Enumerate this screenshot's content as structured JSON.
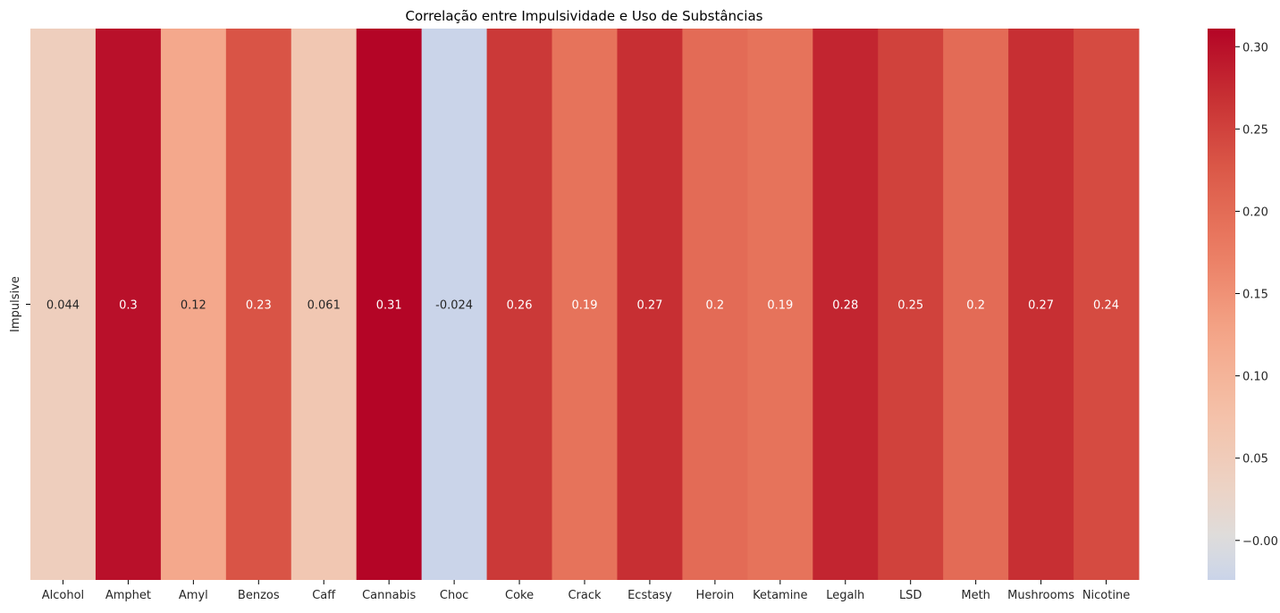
{
  "chart_data": {
    "type": "heatmap",
    "title": "Correlação entre Impulsividade e Uso de Substâncias",
    "xlabel": "",
    "ylabel": "",
    "rows": [
      "Impulsive"
    ],
    "columns": [
      "Alcohol",
      "Amphet",
      "Amyl",
      "Benzos",
      "Caff",
      "Cannabis",
      "Choc",
      "Coke",
      "Crack",
      "Ecstasy",
      "Heroin",
      "Ketamine",
      "Legalh",
      "LSD",
      "Meth",
      "Mushrooms",
      "Nicotine"
    ],
    "values": [
      [
        0.044,
        0.3,
        0.12,
        0.23,
        0.061,
        0.31,
        -0.024,
        0.26,
        0.19,
        0.27,
        0.2,
        0.19,
        0.28,
        0.25,
        0.2,
        0.27,
        0.24
      ]
    ],
    "annotations": [
      [
        "0.044",
        "0.3",
        "0.12",
        "0.23",
        "0.061",
        "0.31",
        "-0.024",
        "0.26",
        "0.19",
        "0.27",
        "0.2",
        "0.19",
        "0.28",
        "0.25",
        "0.2",
        "0.27",
        "0.24"
      ]
    ],
    "colormap": "coolwarm",
    "center": 0,
    "vmin": -0.024,
    "vmax": 0.311,
    "colorbar": {
      "ticks": [
        -0.0,
        0.05,
        0.1,
        0.15,
        0.2,
        0.25,
        0.3
      ],
      "tick_labels": [
        "−0.00",
        "0.05",
        "0.10",
        "0.15",
        "0.20",
        "0.25",
        "0.30"
      ]
    },
    "grid": false,
    "legend": "colorbar-right"
  }
}
